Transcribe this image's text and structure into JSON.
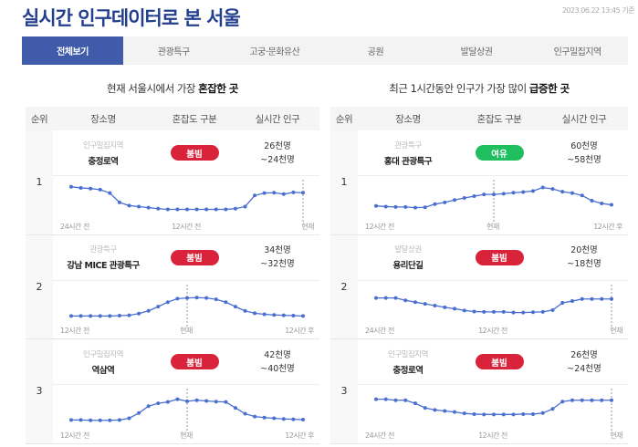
{
  "header": {
    "title": "실시간 인구데이터로 본 서울",
    "timestamp": "2023.06.22 13:45 기준"
  },
  "tabs": [
    "전체보기",
    "관광특구",
    "고궁·문화유산",
    "공원",
    "발달상권",
    "인구밀집지역"
  ],
  "columns": [
    "순위",
    "장소명",
    "혼잡도 구분",
    "실시간 인구"
  ],
  "colors": {
    "accent": "#3f5ba9",
    "busy": "#d9233a",
    "relaxed": "#1fbf5f",
    "line": "#4a6fd0"
  },
  "left": {
    "title_prefix": "현재 서울시에서 가장 ",
    "title_bold": "혼잡한 곳",
    "rows": [
      {
        "rank": "1",
        "category": "인구밀집지역",
        "name": "충정로역",
        "status": "붐빔",
        "status_type": "busy",
        "pop_now": "26천명",
        "pop_range": "~24천명",
        "axis": [
          "24시간 전",
          "12시간 전",
          "현재"
        ],
        "now_marker": 1.0,
        "series": [
          0.9,
          0.87,
          0.85,
          0.82,
          0.72,
          0.45,
          0.36,
          0.33,
          0.3,
          0.27,
          0.25,
          0.25,
          0.25,
          0.25,
          0.25,
          0.25,
          0.25,
          0.27,
          0.33,
          0.65,
          0.72,
          0.73,
          0.69,
          0.74,
          0.73
        ]
      },
      {
        "rank": "2",
        "category": "관광특구",
        "name": "강남 MICE 관광특구",
        "status": "붐빔",
        "status_type": "busy",
        "pop_now": "34천명",
        "pop_range": "~32천명",
        "axis": [
          "12시간 전",
          "현재",
          "12시간 후"
        ],
        "now_marker": 0.5,
        "series": [
          0.2,
          0.2,
          0.2,
          0.2,
          0.2,
          0.21,
          0.22,
          0.27,
          0.35,
          0.47,
          0.6,
          0.7,
          0.72,
          0.73,
          0.72,
          0.68,
          0.6,
          0.47,
          0.35,
          0.28,
          0.25,
          0.23,
          0.22,
          0.21,
          0.2
        ]
      },
      {
        "rank": "3",
        "category": "인구밀집지역",
        "name": "역삼역",
        "status": "붐빔",
        "status_type": "busy",
        "pop_now": "42천명",
        "pop_range": "~40천명",
        "axis": [
          "12시간 전",
          "현재",
          "12시간 후"
        ],
        "now_marker": 0.5,
        "series": [
          0.2,
          0.2,
          0.19,
          0.19,
          0.19,
          0.2,
          0.25,
          0.4,
          0.6,
          0.68,
          0.72,
          0.8,
          0.74,
          0.77,
          0.75,
          0.73,
          0.72,
          0.55,
          0.38,
          0.3,
          0.27,
          0.25,
          0.23,
          0.22,
          0.21
        ]
      }
    ]
  },
  "right": {
    "title_prefix": "최근 1시간동안 인구가 가장 많이 ",
    "title_bold": "급증한 곳",
    "rows": [
      {
        "rank": "1",
        "category": "관광특구",
        "name": "홍대 관광특구",
        "status": "여유",
        "status_type": "relaxed",
        "pop_now": "60천명",
        "pop_range": "~58천명",
        "axis": [
          "12시간 전",
          "현재",
          "12시간 후"
        ],
        "now_marker": 0.5,
        "series": [
          0.35,
          0.33,
          0.32,
          0.32,
          0.3,
          0.31,
          0.4,
          0.45,
          0.52,
          0.58,
          0.63,
          0.68,
          0.68,
          0.7,
          0.73,
          0.75,
          0.78,
          0.88,
          0.84,
          0.76,
          0.72,
          0.65,
          0.5,
          0.42,
          0.38
        ]
      },
      {
        "rank": "2",
        "category": "발달상권",
        "name": "용리단길",
        "status": "붐빔",
        "status_type": "busy",
        "pop_now": "20천명",
        "pop_range": "~18천명",
        "axis": [
          "24시간 전",
          "12시간 전",
          "현재"
        ],
        "now_marker": 1.0,
        "series": [
          0.72,
          0.72,
          0.72,
          0.65,
          0.6,
          0.55,
          0.5,
          0.45,
          0.41,
          0.36,
          0.33,
          0.32,
          0.32,
          0.32,
          0.3,
          0.3,
          0.31,
          0.32,
          0.37,
          0.58,
          0.63,
          0.69,
          0.69,
          0.69,
          0.69
        ]
      },
      {
        "rank": "3",
        "category": "인구밀집지역",
        "name": "충정로역",
        "status": "붐빔",
        "status_type": "busy",
        "pop_now": "26천명",
        "pop_range": "~24천명",
        "axis": [
          "24시간 전",
          "12시간 전",
          "현재"
        ],
        "now_marker": 1.0,
        "series": [
          0.8,
          0.8,
          0.77,
          0.77,
          0.68,
          0.55,
          0.49,
          0.46,
          0.43,
          0.39,
          0.37,
          0.36,
          0.36,
          0.36,
          0.36,
          0.37,
          0.37,
          0.4,
          0.52,
          0.73,
          0.77,
          0.77,
          0.77,
          0.77,
          0.77
        ]
      }
    ]
  }
}
